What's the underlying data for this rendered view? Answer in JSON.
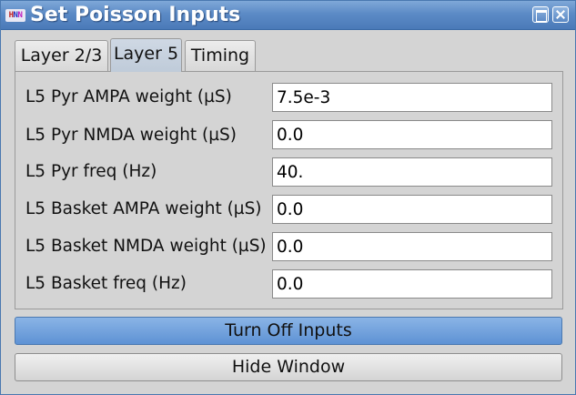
{
  "window": {
    "title": "Set Poisson Inputs",
    "app_icon": "hnn-logo-icon",
    "controls": [
      "maximize-icon",
      "close-icon"
    ]
  },
  "tabs": [
    {
      "label": "Layer 2/3",
      "active": false
    },
    {
      "label": "Layer 5",
      "active": true
    },
    {
      "label": "Timing",
      "active": false
    }
  ],
  "fields": [
    {
      "label": "L5 Pyr AMPA weight (µS)",
      "value": "7.5e-3"
    },
    {
      "label": "L5 Pyr NMDA weight (µS)",
      "value": "0.0"
    },
    {
      "label": "L5 Pyr freq (Hz)",
      "value": "40."
    },
    {
      "label": "L5 Basket AMPA weight (µS)",
      "value": "0.0"
    },
    {
      "label": "L5 Basket NMDA weight (µS)",
      "value": "0.0"
    },
    {
      "label": "L5 Basket freq (Hz)",
      "value": "0.0"
    }
  ],
  "buttons": {
    "turn_off": "Turn Off Inputs",
    "hide": "Hide Window"
  },
  "colors": {
    "titlebar": "#5c8bc6",
    "primary_button": "#6e9edb",
    "active_tab": "#c5d0dd"
  }
}
